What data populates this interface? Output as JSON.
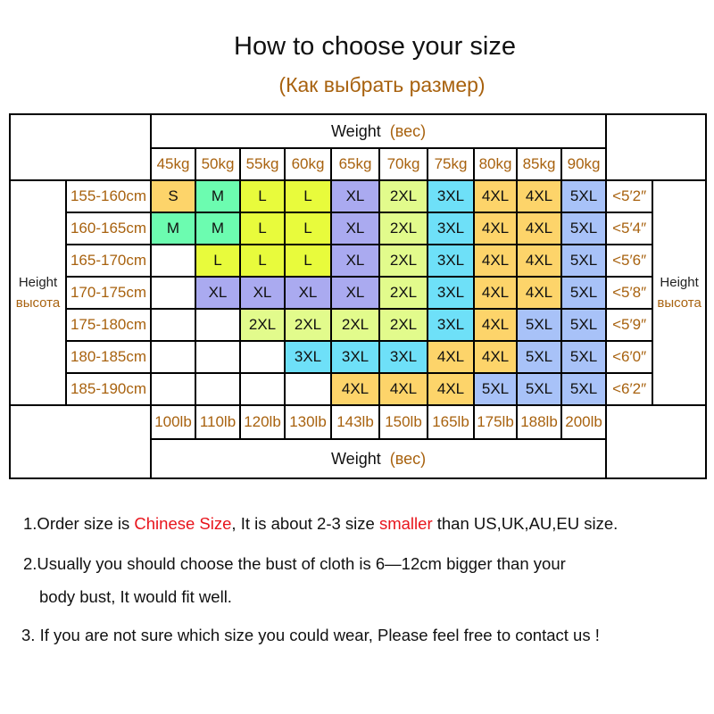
{
  "title": "How to choose your size",
  "subtitle": "(Как выбрать размер)",
  "table": {
    "weight_label": "Weight",
    "weight_label_ru": "(вес)",
    "height_label": "Height",
    "height_label_ru": "высота",
    "kg": [
      "45kg",
      "50kg",
      "55kg",
      "60kg",
      "65kg",
      "70kg",
      "75kg",
      "80kg",
      "85kg",
      "90kg"
    ],
    "lb": [
      "100lb",
      "110lb",
      "120lb",
      "130lb",
      "143lb",
      "150lb",
      "165lb",
      "175lb",
      "188lb",
      "200lb"
    ],
    "rows": [
      {
        "cm": "155-160cm",
        "ft": "<5′2″",
        "sizes": [
          "S",
          "M",
          "L",
          "L",
          "XL",
          "2XL",
          "3XL",
          "4XL",
          "4XL",
          "5XL"
        ]
      },
      {
        "cm": "160-165cm",
        "ft": "<5′4″",
        "sizes": [
          "M",
          "M",
          "L",
          "L",
          "XL",
          "2XL",
          "3XL",
          "4XL",
          "4XL",
          "5XL"
        ]
      },
      {
        "cm": "165-170cm",
        "ft": "<5′6″",
        "sizes": [
          "",
          "L",
          "L",
          "L",
          "XL",
          "2XL",
          "3XL",
          "4XL",
          "4XL",
          "5XL"
        ]
      },
      {
        "cm": "170-175cm",
        "ft": "<5′8″",
        "sizes": [
          "",
          "XL",
          "XL",
          "XL",
          "XL",
          "2XL",
          "3XL",
          "4XL",
          "4XL",
          "5XL"
        ]
      },
      {
        "cm": "175-180cm",
        "ft": "<5′9″",
        "sizes": [
          "",
          "",
          "2XL",
          "2XL",
          "2XL",
          "2XL",
          "3XL",
          "4XL",
          "5XL",
          "5XL"
        ]
      },
      {
        "cm": "180-185cm",
        "ft": "<6′0″",
        "sizes": [
          "",
          "",
          "",
          "3XL",
          "3XL",
          "3XL",
          "4XL",
          "4XL",
          "5XL",
          "5XL"
        ]
      },
      {
        "cm": "185-190cm",
        "ft": "<6′2″",
        "sizes": [
          "",
          "",
          "",
          "",
          "4XL",
          "4XL",
          "4XL",
          "5XL",
          "5XL",
          "5XL"
        ]
      }
    ],
    "size_colors": {
      "S": "#fdd46a",
      "M": "#6cfcb0",
      "L": "#e8fb3c",
      "XL": "#aaaaf0",
      "2XL": "#e2fb8c",
      "3XL": "#6ee0f8",
      "4XL": "#fdd46a",
      "5XL": "#a8c2f8"
    }
  },
  "notes": {
    "n1_a": "1.Order size is ",
    "n1_red1": "Chinese Size",
    ", ": "",
    "n1_b": ", It is about 2-3 size ",
    "n1_red2": "smaller",
    "n1_c": " than US,UK,AU,EU size.",
    "n2_a": "2.Usually you should choose the bust of cloth is 6—12cm bigger than your",
    "n2_b": "body bust, It would fit well.",
    "n3": "3. If you are not sure which size you could wear, Please feel free to contact us !"
  }
}
